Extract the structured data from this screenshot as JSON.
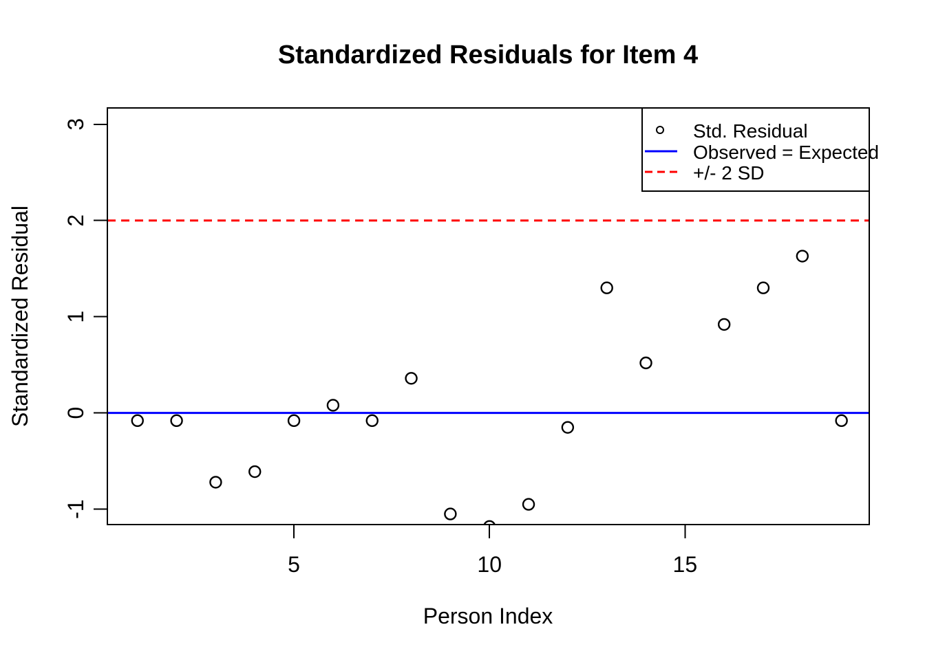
{
  "page": {
    "background": "#ffffff"
  },
  "chart_data": {
    "type": "scatter",
    "title": "Standardized Residuals for Item 4",
    "xlabel": "Person Index",
    "ylabel": "Standardized Residual",
    "series": [
      {
        "name": "Std. Residual",
        "marker": "open-circle",
        "color": "#000000",
        "points": [
          {
            "x": 1,
            "y": -0.08
          },
          {
            "x": 2,
            "y": -0.08
          },
          {
            "x": 3,
            "y": -0.72
          },
          {
            "x": 4,
            "y": -0.61
          },
          {
            "x": 5,
            "y": -0.08
          },
          {
            "x": 6,
            "y": 0.08
          },
          {
            "x": 7,
            "y": -0.08
          },
          {
            "x": 8,
            "y": 0.36
          },
          {
            "x": 9,
            "y": -1.05
          },
          {
            "x": 10,
            "y": -1.18
          },
          {
            "x": 11,
            "y": -0.95
          },
          {
            "x": 12,
            "y": -0.15
          },
          {
            "x": 13,
            "y": 1.3
          },
          {
            "x": 14,
            "y": 0.52
          },
          {
            "x": 16,
            "y": 0.92
          },
          {
            "x": 17,
            "y": 1.3
          },
          {
            "x": 18,
            "y": 1.63
          },
          {
            "x": 19,
            "y": -0.08
          }
        ]
      }
    ],
    "reference_lines": [
      {
        "name": "Observed = Expected",
        "y": 0,
        "color": "#0000ff",
        "style": "solid"
      },
      {
        "name": "+/- 2 SD",
        "y": 2,
        "color": "#ff0000",
        "style": "dashed"
      }
    ],
    "xlim": [
      0.23,
      19.71
    ],
    "ylim": [
      -1.16,
      3.17
    ],
    "xticks": [
      "5",
      "10",
      "15"
    ],
    "xtick_values": [
      5,
      10,
      15
    ],
    "yticks": [
      "-1",
      "0",
      "1",
      "2",
      "3"
    ],
    "ytick_values": [
      -1,
      0,
      1,
      2,
      3
    ],
    "grid": false,
    "legend": {
      "position": "top-right",
      "entries": [
        {
          "label": "Std. Residual",
          "sample": "open-circle",
          "color": "#000000"
        },
        {
          "label": "Observed = Expected",
          "sample": "solid-line",
          "color": "#0000ff"
        },
        {
          "label": "+/- 2 SD",
          "sample": "dashed-line",
          "color": "#ff0000"
        }
      ]
    }
  },
  "colors": {
    "axis": "#000000",
    "points": "#000000",
    "observed_equals_expected_line": "#0000ff",
    "two_sd_line": "#ff0000",
    "background": "#ffffff"
  }
}
